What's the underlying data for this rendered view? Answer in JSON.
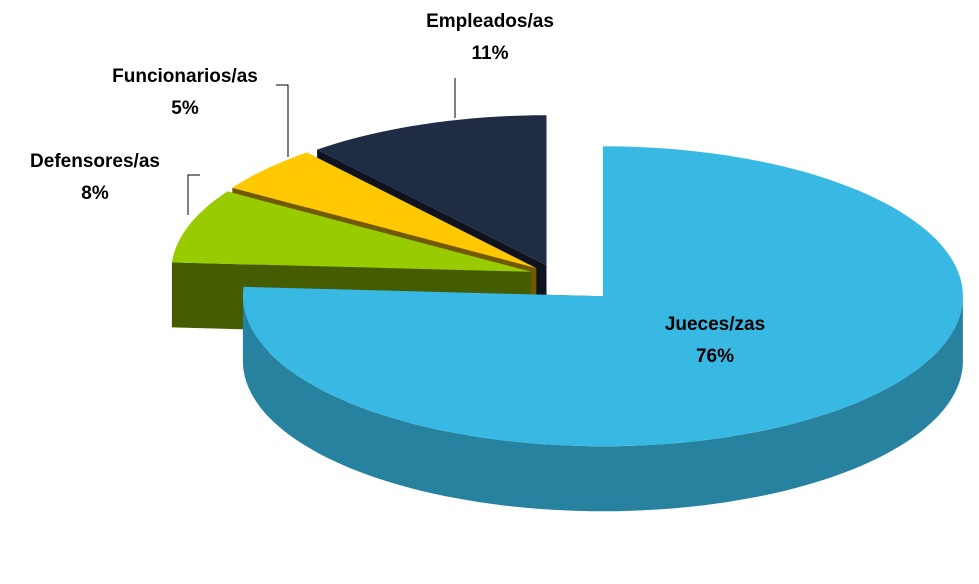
{
  "chart_data": {
    "type": "pie",
    "categories": [
      "Jueces/zas",
      "Defensores/as",
      "Funcionarios/as",
      "Empleados/as"
    ],
    "values": [
      76,
      8,
      5,
      11
    ],
    "value_labels": [
      "76%",
      "8%",
      "5%",
      "11%"
    ],
    "colors": [
      "#38b9e4",
      "#99cc00",
      "#ffc800",
      "#1f2c44"
    ]
  }
}
